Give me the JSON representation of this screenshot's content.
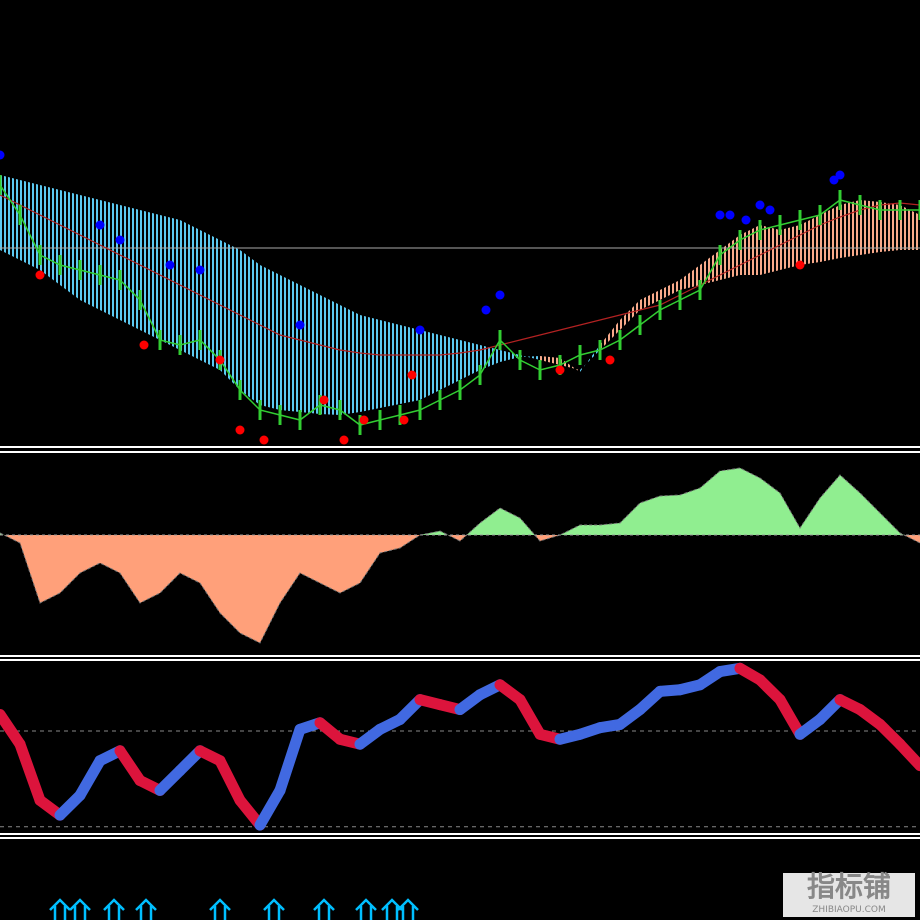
{
  "chart_data": [
    {
      "type": "ichimoku",
      "xlim": [
        0,
        46
      ],
      "ylim": [
        0,
        300
      ],
      "price": {
        "color": "#32cd32",
        "values": [
          260,
          230,
          190,
          180,
          175,
          170,
          165,
          145,
          105,
          100,
          105,
          85,
          55,
          35,
          30,
          25,
          40,
          35,
          20,
          25,
          30,
          35,
          45,
          55,
          70,
          105,
          85,
          75,
          80,
          90,
          95,
          105,
          120,
          135,
          145,
          155,
          190,
          205,
          215,
          220,
          225,
          230,
          245,
          240,
          235,
          235,
          235
        ]
      },
      "span_a": [
        270,
        265,
        260,
        255,
        250,
        245,
        240,
        235,
        230,
        225,
        215,
        205,
        195,
        180,
        170,
        160,
        150,
        140,
        130,
        125,
        120,
        115,
        110,
        105,
        100,
        95,
        90,
        85,
        80,
        75,
        95,
        115,
        135,
        145,
        155,
        160,
        165,
        170,
        170,
        175,
        180,
        183,
        187,
        190,
        193,
        195,
        195
      ],
      "span_b": [
        195,
        185,
        175,
        160,
        145,
        135,
        125,
        115,
        105,
        95,
        85,
        75,
        55,
        40,
        35,
        33,
        31,
        30,
        33,
        37,
        41,
        45,
        55,
        65,
        75,
        83,
        88,
        89,
        87,
        73,
        100,
        125,
        145,
        155,
        165,
        180,
        195,
        210,
        220,
        215,
        220,
        230,
        240,
        245,
        243,
        240,
        230
      ],
      "cloud_colors": [
        "#5bc8f0",
        "#f7a98a"
      ],
      "ma": {
        "color": "#b22222",
        "values": [
          250,
          240,
          230,
          220,
          210,
          200,
          190,
          180,
          170,
          160,
          150,
          140,
          130,
          120,
          110,
          105,
          100,
          95,
          92,
          90,
          90,
          90,
          90,
          92,
          95,
          100,
          105,
          110,
          115,
          120,
          125,
          130,
          135,
          140,
          150,
          160,
          170,
          180,
          190,
          200,
          210,
          220,
          228,
          235,
          240,
          242,
          240
        ]
      },
      "current_price": 197,
      "red_dots": {
        "color": "#ff0000",
        "x": [
          2,
          7.2,
          11,
          12,
          13.2,
          16.2,
          17.2,
          18.2,
          20.2,
          20.6,
          28,
          30.5,
          40
        ],
        "values": [
          170,
          100,
          85,
          15,
          5,
          45,
          5,
          25,
          25,
          70,
          75,
          85,
          180
        ]
      },
      "blue_dots": {
        "color": "#0000ff",
        "x": [
          0,
          5,
          6,
          8.5,
          10,
          15,
          21,
          24.3,
          25,
          36,
          36.5,
          37.3,
          38,
          38.5,
          41.7,
          42
        ],
        "values": [
          290,
          220,
          205,
          180,
          175,
          120,
          115,
          135,
          150,
          230,
          230,
          225,
          240,
          235,
          265,
          270
        ]
      }
    },
    {
      "type": "area",
      "xlim": [
        0,
        46
      ],
      "ylim": [
        -120,
        80
      ],
      "colors": [
        "#90ee90",
        "#ffa07a"
      ],
      "values": [
        2,
        -8,
        -68,
        -58,
        -38,
        -28,
        -38,
        -68,
        -58,
        -38,
        -48,
        -78,
        -98,
        -108,
        -68,
        -38,
        -48,
        -58,
        -48,
        -18,
        -13,
        0,
        4,
        -6,
        12,
        27,
        17,
        -6,
        0,
        10,
        10,
        12,
        32,
        39,
        40,
        47,
        64,
        67,
        57,
        42,
        7,
        37,
        60,
        42,
        22,
        2,
        -8
      ]
    },
    {
      "type": "oscillator",
      "xlim": [
        0,
        46
      ],
      "ylim": [
        0,
        100
      ],
      "colors": [
        "#4169e1",
        "#dc143c"
      ],
      "levels": [
        60,
        2
      ],
      "values": [
        70,
        52,
        18,
        9,
        21,
        42,
        48,
        30,
        24,
        36,
        48,
        42,
        18,
        3,
        24,
        61,
        65,
        55,
        52,
        61,
        67,
        79,
        76,
        73,
        82,
        88,
        79,
        58,
        55,
        58,
        62,
        64,
        73,
        84,
        85,
        88,
        96,
        98,
        91,
        79,
        58,
        67,
        79,
        73,
        64,
        52,
        39
      ],
      "arrows_x": [
        3,
        4,
        5.7,
        7.3,
        11,
        13.7,
        16.2,
        18.3,
        19.6,
        20.4
      ],
      "arrow_color": "#00bfff"
    }
  ],
  "watermark": {
    "title": "指标铺",
    "subtitle": "ZHIBIAOPU.COM"
  }
}
